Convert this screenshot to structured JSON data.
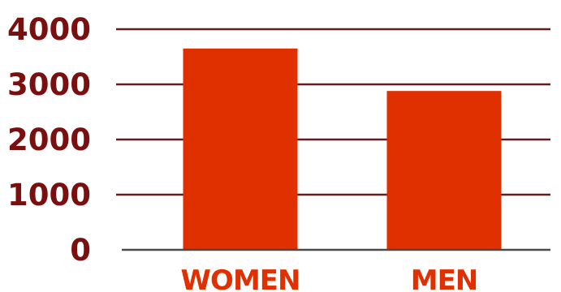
{
  "chart_data": {
    "type": "bar",
    "categories": [
      "WOMEN",
      "MEN"
    ],
    "values": [
      3650,
      2880
    ],
    "ylim": [
      0,
      4000
    ],
    "yticks": [
      0,
      1000,
      2000,
      3000,
      4000
    ],
    "ytick_labels": [
      "0",
      "1000",
      "2000",
      "3000",
      "4000"
    ],
    "grid": true,
    "colors": {
      "bar": "#e03000",
      "tick_text": "#7a0f0f",
      "category_text": "#e03000",
      "gridline": "#6b1a1a",
      "baseline": "#4a4a4a"
    }
  }
}
